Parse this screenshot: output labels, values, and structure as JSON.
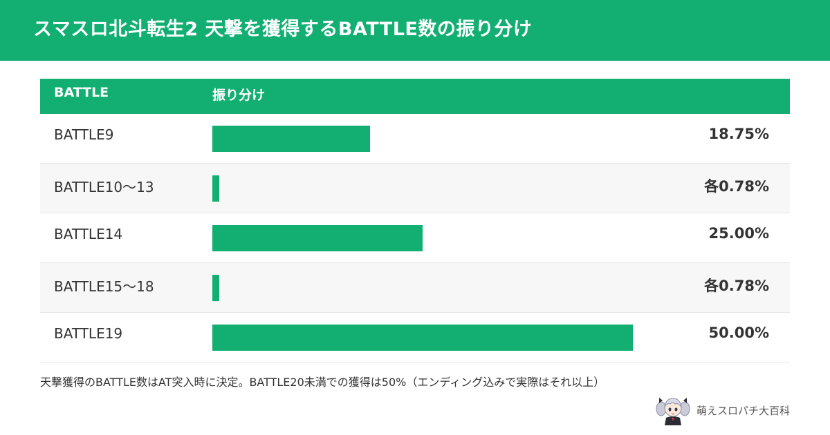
{
  "header": {
    "title": "スマスロ北斗転生2 天撃を獲得するBATTLE数の振り分け"
  },
  "colors": {
    "accent": "#13af72",
    "alt_row": "#f7f7f7",
    "text": "#333333"
  },
  "table": {
    "headers": [
      "BATTLE",
      "振り分け"
    ]
  },
  "chart_data": {
    "type": "bar",
    "orientation": "horizontal",
    "title": "スマスロ北斗転生2 天撃を獲得するBATTLE数の振り分け",
    "xlabel": "振り分け",
    "ylabel": "BATTLE",
    "categories": [
      "BATTLE9",
      "BATTLE10〜13",
      "BATTLE14",
      "BATTLE15〜18",
      "BATTLE19"
    ],
    "values": [
      18.75,
      0.78,
      25.0,
      0.78,
      50.0
    ],
    "value_labels": [
      "18.75%",
      "各0.78%",
      "25.00%",
      "各0.78%",
      "50.00%"
    ],
    "xlim": [
      0,
      62.5
    ],
    "grid": false,
    "legend": "none"
  },
  "footnote": "天撃獲得のBATTLE数はAT突入時に決定。BATTLE20未満での獲得は50%（エンディング込みで実際はそれ以上）",
  "brand": {
    "name": "萌えスロパチ大百科",
    "icon": "mascot-icon"
  }
}
